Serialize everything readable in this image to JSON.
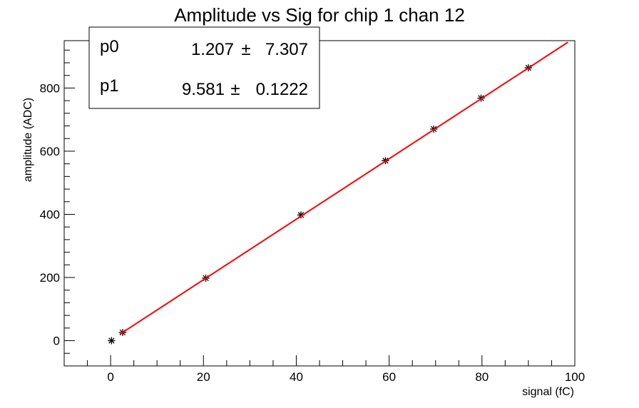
{
  "chart_data": {
    "type": "scatter",
    "title": "Amplitude vs Sig for chip 1 chan 12",
    "xlabel": "signal (fC)",
    "ylabel": "amplitude (ADC)",
    "xlim": [
      -10,
      100
    ],
    "ylim": [
      -80,
      950
    ],
    "x_ticks": [
      0,
      20,
      40,
      60,
      80,
      100
    ],
    "y_ticks": [
      0,
      200,
      400,
      600,
      800
    ],
    "grid": false,
    "series": [
      {
        "marker": "star",
        "color": "#000000",
        "x": [
          0.2,
          2.6,
          20.5,
          41.0,
          59.2,
          69.6,
          79.8,
          90.0
        ],
        "y": [
          0,
          26,
          198,
          398,
          570,
          670,
          768,
          864
        ],
        "x_err": [
          0.8,
          0.8,
          0.8,
          0.8,
          0.8,
          0.8,
          0.8,
          0.8
        ]
      }
    ],
    "fit": {
      "color": "#ff0000",
      "function": "linear",
      "x_range": [
        2,
        98.5
      ],
      "p0": 1.207,
      "p1": 9.581
    },
    "stats_box": {
      "placement": "top-left",
      "rows": [
        {
          "name": "p0",
          "value": "1.207",
          "pm": "±",
          "error": "7.307"
        },
        {
          "name": "p1",
          "value": "9.581",
          "pm": "±",
          "error": "0.1222"
        }
      ]
    }
  }
}
